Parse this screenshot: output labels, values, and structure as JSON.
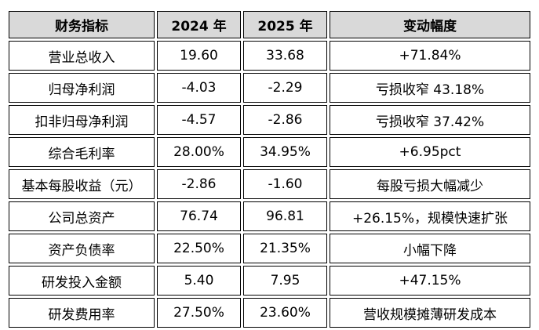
{
  "table": {
    "header": [
      "财务指标",
      "2024 年",
      "2025 年",
      "变动幅度"
    ],
    "rows": [
      [
        "营业总收入",
        "19.60",
        "33.68",
        "+71.84%"
      ],
      [
        "归母净利润",
        "-4.03",
        "-2.29",
        "亏损收窄 43.18%"
      ],
      [
        "扣非归母净利润",
        "-4.57",
        "-2.86",
        "亏损收窄 37.42%"
      ],
      [
        "综合毛利率",
        "28.00%",
        "34.95%",
        "+6.95pct"
      ],
      [
        "基本每股收益（元）",
        "-2.86",
        "-1.60",
        "每股亏损大幅减少"
      ],
      [
        "公司总资产",
        "76.74",
        "96.81",
        "+26.15%，规模快速扩张"
      ],
      [
        "资产负债率",
        "22.50%",
        "21.35%",
        "小幅下降"
      ],
      [
        "研发投入金额",
        "5.40",
        "7.95",
        "+47.15%"
      ],
      [
        "研发费用率",
        "27.50%",
        "23.60%",
        "营收规模摊薄研发成本"
      ]
    ]
  }
}
